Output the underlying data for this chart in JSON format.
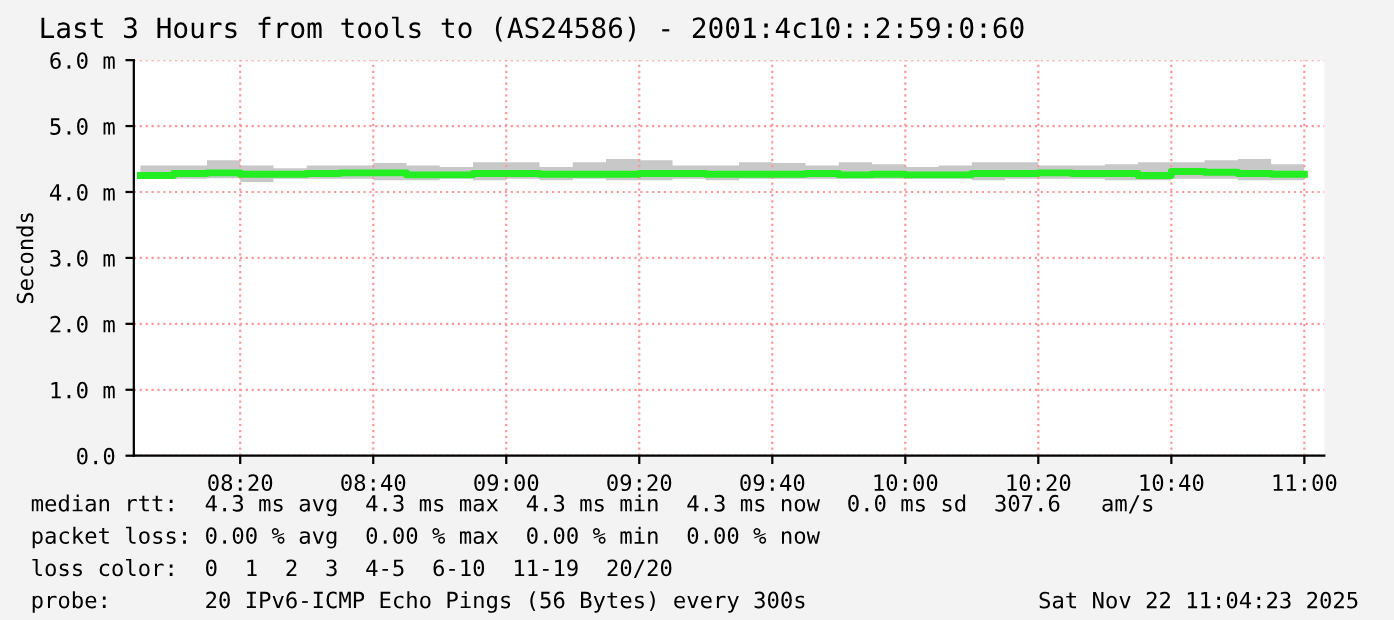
{
  "chart_data": {
    "type": "step",
    "title": "Last 3 Hours from tools to (AS24586) - 2001:4c10::2:59:0:60",
    "ylabel": "Seconds",
    "x": [
      8.0833,
      8.1667,
      8.25,
      8.3333,
      8.4167,
      8.5,
      8.5833,
      8.6667,
      8.75,
      8.8333,
      8.9167,
      9,
      9.0833,
      9.1667,
      9.25,
      9.3333,
      9.4167,
      9.5,
      9.5833,
      9.6667,
      9.75,
      9.8333,
      9.9167,
      10,
      10.0833,
      10.1667,
      10.25,
      10.3333,
      10.4167,
      10.5,
      10.5833,
      10.6667,
      10.75,
      10.8333,
      10.9167,
      11
    ],
    "series": [
      {
        "color": "#22ee22",
        "values": [
          4.25,
          4.28,
          4.29,
          4.27,
          4.27,
          4.28,
          4.29,
          4.29,
          4.26,
          4.26,
          4.28,
          4.28,
          4.27,
          4.27,
          4.27,
          4.28,
          4.28,
          4.27,
          4.27,
          4.27,
          4.28,
          4.26,
          4.27,
          4.26,
          4.26,
          4.28,
          4.28,
          4.29,
          4.28,
          4.28,
          4.25,
          4.31,
          4.3,
          4.28,
          4.27,
          4.27
        ],
        "upper": [
          4.4,
          4.4,
          4.48,
          4.4,
          4.36,
          4.4,
          4.4,
          4.44,
          4.4,
          4.38,
          4.45,
          4.45,
          4.38,
          4.45,
          4.5,
          4.48,
          4.4,
          4.4,
          4.45,
          4.44,
          4.4,
          4.45,
          4.42,
          4.38,
          4.4,
          4.45,
          4.45,
          4.4,
          4.4,
          4.42,
          4.45,
          4.45,
          4.48,
          4.5,
          4.42,
          4.42
        ],
        "lower": [
          4.2,
          4.2,
          4.21,
          4.15,
          4.2,
          4.2,
          4.2,
          4.18,
          4.18,
          4.2,
          4.18,
          4.2,
          4.18,
          4.2,
          4.18,
          4.18,
          4.2,
          4.18,
          4.2,
          4.2,
          4.2,
          4.2,
          4.2,
          4.2,
          4.2,
          4.18,
          4.2,
          4.2,
          4.2,
          4.18,
          4.18,
          4.2,
          4.2,
          4.18,
          4.18,
          4.18
        ]
      }
    ],
    "xlim": [
      8.0667,
      11.05
    ],
    "xticks": [
      {
        "value": 8.3333,
        "label": "08:20"
      },
      {
        "value": 8.6667,
        "label": "08:40"
      },
      {
        "value": 9,
        "label": "09:00"
      },
      {
        "value": 9.3333,
        "label": "09:20"
      },
      {
        "value": 9.6667,
        "label": "09:40"
      },
      {
        "value": 10,
        "label": "10:00"
      },
      {
        "value": 10.3333,
        "label": "10:20"
      },
      {
        "value": 10.6667,
        "label": "10:40"
      },
      {
        "value": 11,
        "label": "11:00"
      }
    ],
    "ylim": [
      0,
      6
    ],
    "yticks": [
      {
        "value": 0,
        "label": "0.0"
      },
      {
        "value": 1,
        "label": "1.0 m"
      },
      {
        "value": 2,
        "label": "2.0 m"
      },
      {
        "value": 3,
        "label": "3.0 m"
      },
      {
        "value": 4,
        "label": "4.0 m"
      },
      {
        "value": 5,
        "label": "5.0 m"
      },
      {
        "value": 6,
        "label": "6.0 m"
      }
    ],
    "grid": true,
    "annotations": [
      "median rtt:  4.3 ms avg  4.3 ms max  4.3 ms min  4.3 ms now  0.0 ms sd  307.6   am/s",
      "packet loss: 0.00 % avg  0.00 % max  0.00 % min  0.00 % now",
      "loss color:  0  1  2  3  4-5  6-10  11-19  20/20",
      "probe:       20 IPv6-ICMP Echo Pings (56 Bytes) every 300s",
      "Sat Nov 22 11:04:23 2025"
    ]
  }
}
